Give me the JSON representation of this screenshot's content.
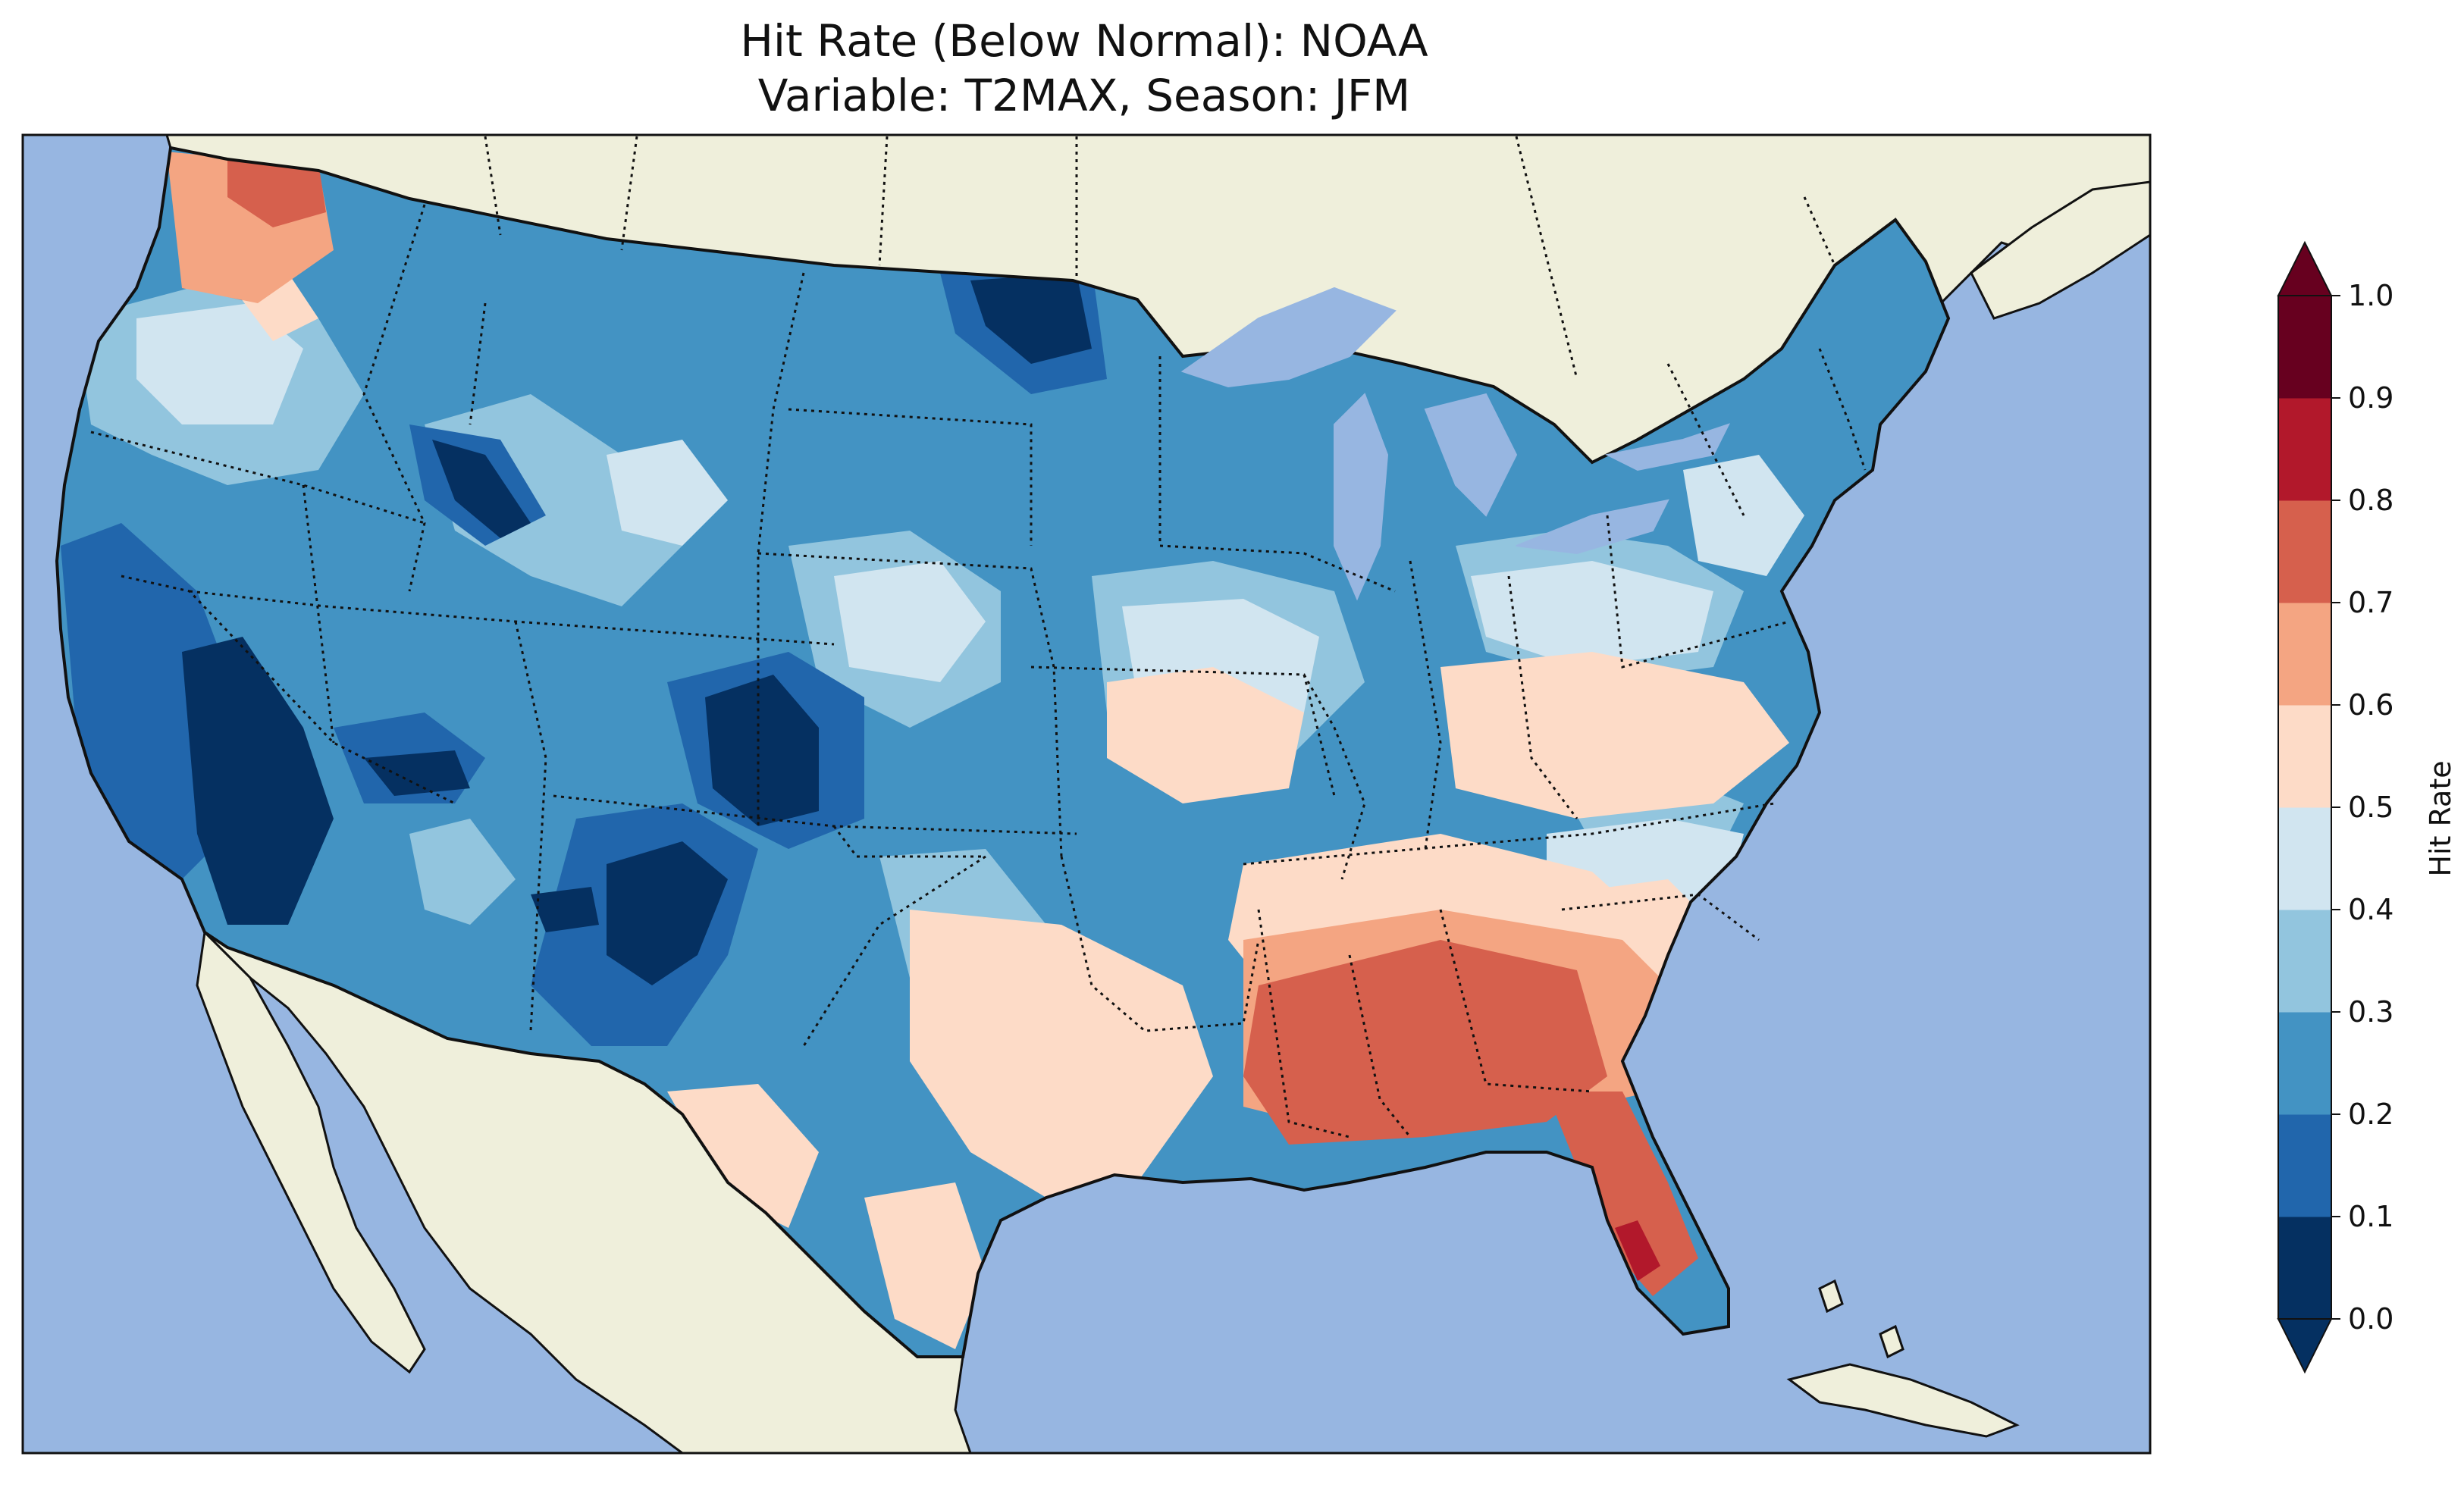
{
  "title": {
    "line1": "Hit Rate (Below Normal): NOAA",
    "line2": "Variable: T2MAX, Season: JFM"
  },
  "map": {
    "region": "Contiguous United States",
    "ocean_color": "#97b6e1",
    "land_color": "#efefdb",
    "border_color": "#111111"
  },
  "colorbar": {
    "label": "Hit Rate",
    "ticks": [
      "0.0",
      "0.1",
      "0.2",
      "0.3",
      "0.4",
      "0.5",
      "0.6",
      "0.7",
      "0.8",
      "0.9",
      "1.0"
    ],
    "colors": [
      "#053061",
      "#2166ac",
      "#4393c3",
      "#92c5de",
      "#d1e5f0",
      "#fddbc7",
      "#f4a582",
      "#d6604d",
      "#b2182b",
      "#67001f"
    ],
    "extend": "both"
  }
}
